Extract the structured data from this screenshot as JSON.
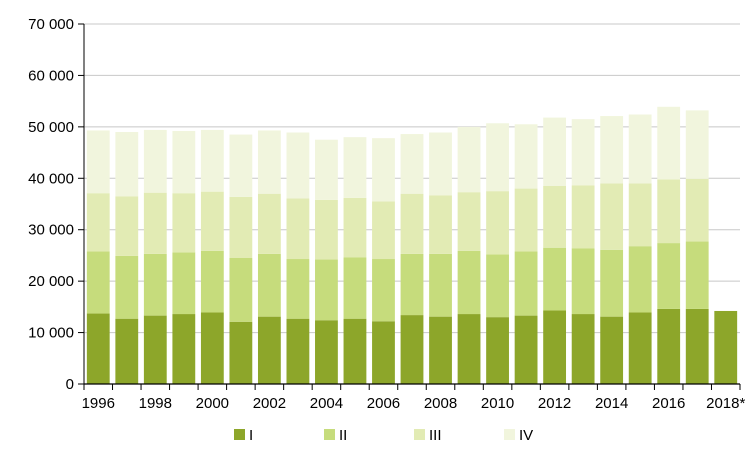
{
  "chart_data": {
    "type": "bar",
    "stacked": true,
    "title": "",
    "xlabel": "",
    "ylabel": "",
    "ylim": [
      0,
      70000
    ],
    "yticks": [
      0,
      10000,
      20000,
      30000,
      40000,
      50000,
      60000,
      70000
    ],
    "ytick_labels": [
      "0",
      "10 000",
      "20 000",
      "30 000",
      "40 000",
      "50 000",
      "60 000",
      "70 000"
    ],
    "categories": [
      "1996",
      "1997",
      "1998",
      "1999",
      "2000",
      "2001",
      "2002",
      "2003",
      "2004",
      "2005",
      "2006",
      "2007",
      "2008",
      "2009",
      "2010",
      "2011",
      "2012",
      "2013",
      "2014",
      "2015",
      "2016",
      "2017",
      "2018*"
    ],
    "x_tick_labels": [
      "1996",
      "",
      "1998",
      "",
      "2000",
      "",
      "2002",
      "",
      "2004",
      "",
      "2006",
      "",
      "2008",
      "",
      "2010",
      "",
      "2012",
      "",
      "2014",
      "",
      "2016",
      "",
      "2018*"
    ],
    "grid": "horizontal",
    "legend_position": "bottom",
    "series": [
      {
        "name": "I",
        "color": "#8da62a",
        "values": [
          13700,
          12700,
          13300,
          13600,
          13900,
          12100,
          13100,
          12700,
          12400,
          12700,
          12200,
          13400,
          13100,
          13600,
          13000,
          13300,
          14300,
          13600,
          13100,
          13900,
          14600,
          14600,
          14200
        ]
      },
      {
        "name": "II",
        "color": "#c6dc7c",
        "values": [
          12100,
          12200,
          12000,
          12000,
          12000,
          12400,
          12200,
          11600,
          11800,
          11900,
          12100,
          11900,
          12200,
          12300,
          12200,
          12500,
          12200,
          12800,
          13000,
          12900,
          12800,
          13100,
          null
        ]
      },
      {
        "name": "III",
        "color": "#e2ebb4",
        "values": [
          11300,
          11600,
          11900,
          11500,
          11500,
          11900,
          11700,
          11800,
          11600,
          11600,
          11200,
          11700,
          11400,
          11400,
          12300,
          12200,
          12000,
          12200,
          12900,
          12200,
          12400,
          12200,
          null
        ]
      },
      {
        "name": "IV",
        "color": "#f1f5dd",
        "values": [
          12200,
          12500,
          12200,
          12100,
          12000,
          12100,
          12300,
          12800,
          11700,
          11800,
          12300,
          11600,
          12200,
          12700,
          13200,
          12500,
          13300,
          12900,
          13100,
          13400,
          14100,
          13300,
          null
        ]
      }
    ]
  }
}
